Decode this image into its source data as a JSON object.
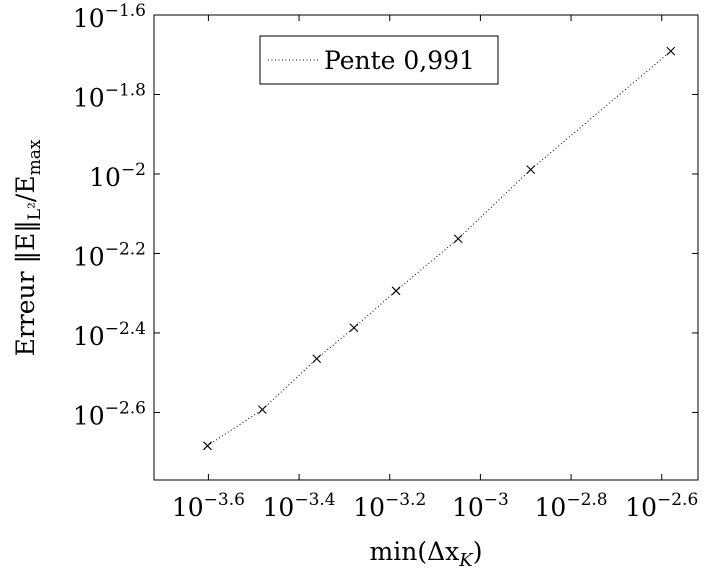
{
  "chart_data": {
    "type": "scatter",
    "xscale": "log",
    "yscale": "log",
    "xlabel": "min(Δx_K)",
    "ylabel": "Erreur ‖E‖_{L²}/E_max",
    "xlim_log10": [
      -3.72,
      -2.52
    ],
    "ylim_log10": [
      -2.77,
      -1.6
    ],
    "x_ticks": [
      {
        "exp": "−3.6",
        "v": -3.6
      },
      {
        "exp": "−3.4",
        "v": -3.4
      },
      {
        "exp": "−3.2",
        "v": -3.2
      },
      {
        "exp": "−3",
        "v": -3.0
      },
      {
        "exp": "−2.8",
        "v": -2.8
      },
      {
        "exp": "−2.6",
        "v": -2.6
      }
    ],
    "y_ticks": [
      {
        "exp": "−1.6",
        "v": -1.6
      },
      {
        "exp": "−1.8",
        "v": -1.8
      },
      {
        "exp": "−2",
        "v": -2.0
      },
      {
        "exp": "−2.2",
        "v": -2.2
      },
      {
        "exp": "−2.4",
        "v": -2.4
      },
      {
        "exp": "−2.6",
        "v": -2.6
      }
    ],
    "series": [
      {
        "name": "Pente 0,991",
        "marker": "x",
        "line": "dotted",
        "points_log10": [
          [
            -3.602,
            -2.684
          ],
          [
            -3.481,
            -2.593
          ],
          [
            -3.361,
            -2.465
          ],
          [
            -3.279,
            -2.387
          ],
          [
            -3.186,
            -2.294
          ],
          [
            -3.049,
            -2.163
          ],
          [
            -2.889,
            -1.989
          ],
          [
            -2.58,
            -1.691
          ]
        ]
      }
    ],
    "grid": false,
    "legend_position": "top-center"
  }
}
